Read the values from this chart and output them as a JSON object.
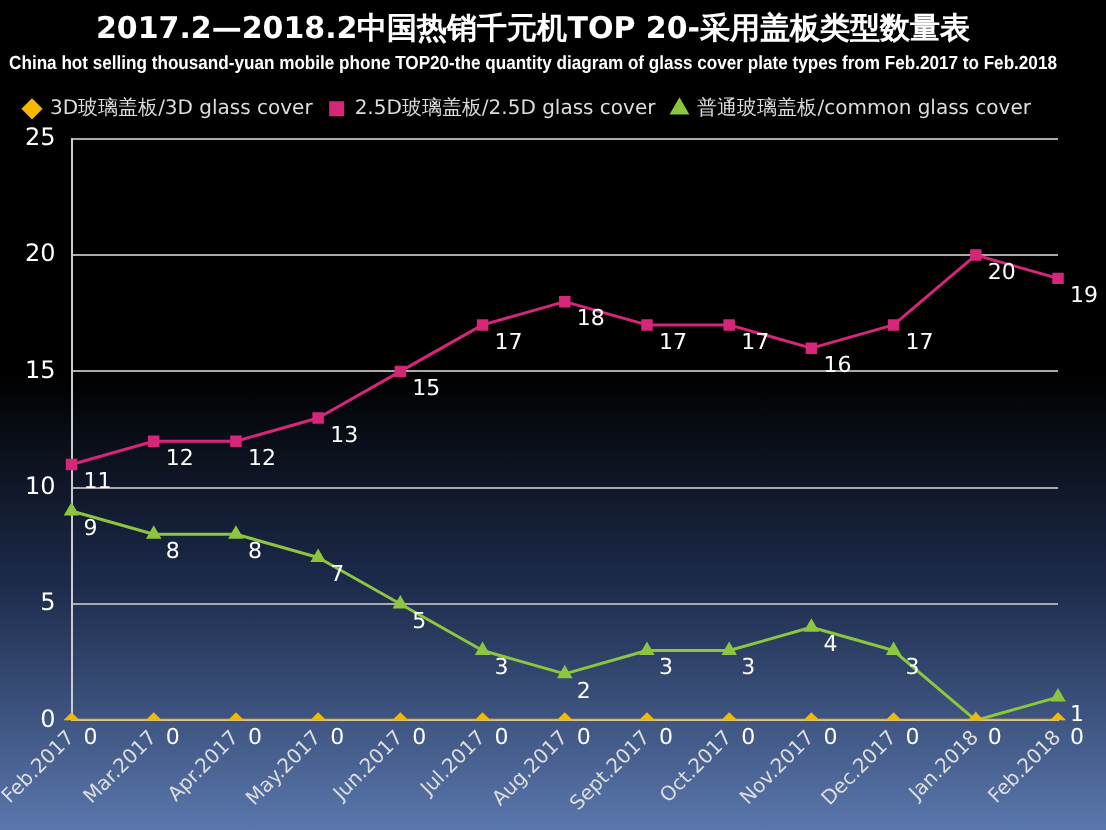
{
  "chart_data": {
    "type": "line",
    "title": "2017.2—2018.2中国热销千元机TOP 20-采用盖板类型数量表",
    "subtitle": "China hot selling thousand-yuan mobile phone TOP20-the quantity diagram of glass cover plate types from Feb.2017 to Feb.2018",
    "categories": [
      "Feb.2017",
      "Mar.2017",
      "Apr.2017",
      "May.2017",
      "Jun.2017",
      "Jul.2017",
      "Aug.2017",
      "Sept.2017",
      "Oct.2017",
      "Nov.2017",
      "Dec.2017",
      "Jan.2018",
      "Feb.2018"
    ],
    "series": [
      {
        "name": "3D玻璃盖板/3D glass cover",
        "color": "#f5b800",
        "marker": "diamond",
        "values": [
          0,
          0,
          0,
          0,
          0,
          0,
          0,
          0,
          0,
          0,
          0,
          0,
          0
        ],
        "value_labels": [
          "0",
          "0",
          "0",
          "0",
          "0",
          "0",
          "0",
          "0",
          "0",
          "0",
          "0",
          "0",
          "0"
        ]
      },
      {
        "name": "2.5D玻璃盖板/2.5D glass cover",
        "color": "#d6267a",
        "marker": "square",
        "values": [
          11,
          12,
          12,
          13,
          15,
          17,
          18,
          17,
          17,
          16,
          17,
          20,
          19
        ],
        "value_labels": [
          "11",
          "12",
          "12",
          "13",
          "15",
          "17",
          "18",
          "17",
          "17",
          "16",
          "17",
          "20",
          "19"
        ]
      },
      {
        "name": "普通玻璃盖板/common glass cover",
        "color": "#8cc63f",
        "marker": "triangle",
        "values": [
          9,
          8,
          8,
          7,
          5,
          3,
          2,
          3,
          3,
          4,
          3,
          0,
          1
        ],
        "value_labels": [
          "9",
          "8",
          "8",
          "7",
          "5",
          "3",
          "2",
          "3",
          "3",
          "4",
          "3",
          null,
          "1"
        ]
      }
    ],
    "ylim": [
      0,
      25
    ],
    "yticks": [
      0,
      5,
      10,
      15,
      20,
      25
    ],
    "grid": "y",
    "legend": "top left",
    "line_style": "solid"
  }
}
